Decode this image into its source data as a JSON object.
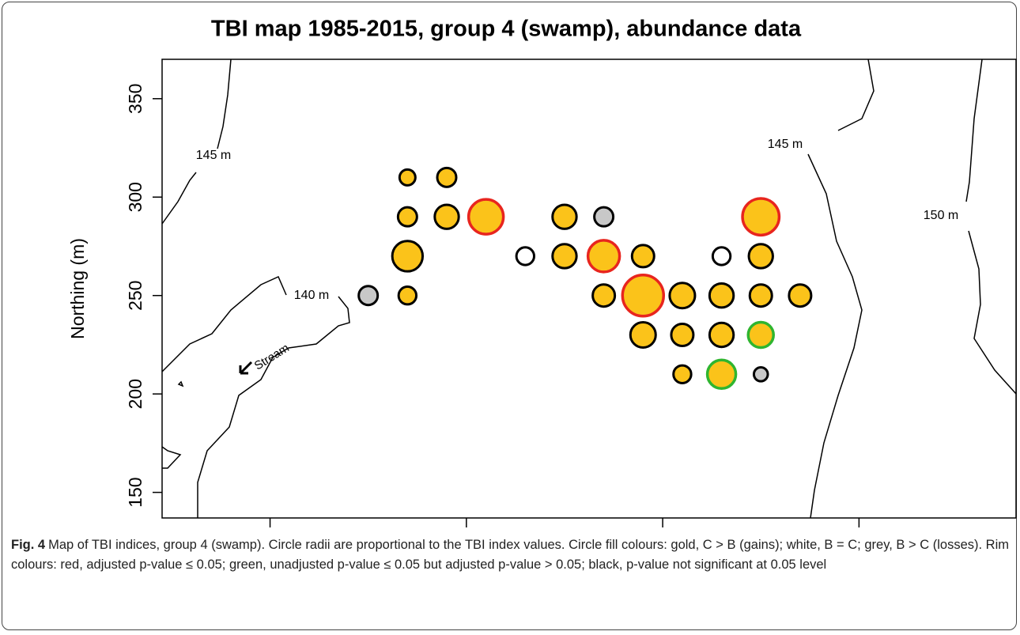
{
  "chart_data": {
    "type": "scatter",
    "title": "TBI map 1985-2015, group 4 (swamp), abundance data",
    "y_label": "Northing (m)",
    "xlim": [
      145,
      580
    ],
    "ylim": [
      137,
      370
    ],
    "xticks": [
      200,
      300,
      400,
      500
    ],
    "yticks": [
      150,
      200,
      250,
      300,
      350
    ],
    "x": [
      250,
      270,
      270,
      270,
      270,
      290,
      290,
      310,
      330,
      350,
      350,
      370,
      370,
      370,
      390,
      390,
      390,
      410,
      410,
      410,
      430,
      430,
      430,
      430,
      450,
      450,
      450,
      450,
      450,
      470
    ],
    "y": [
      250,
      310,
      290,
      270,
      250,
      310,
      290,
      290,
      270,
      290,
      270,
      290,
      270,
      250,
      270,
      250,
      230,
      250,
      230,
      210,
      270,
      250,
      230,
      210,
      290,
      270,
      250,
      230,
      210,
      250
    ],
    "sizes": [
      0.3,
      0.25,
      0.3,
      0.48,
      0.28,
      0.3,
      0.38,
      0.55,
      0.28,
      0.38,
      0.38,
      0.3,
      0.5,
      0.35,
      0.35,
      0.65,
      0.4,
      0.4,
      0.35,
      0.28,
      0.28,
      0.38,
      0.38,
      0.45,
      0.58,
      0.38,
      0.35,
      0.4,
      0.22,
      0.35
    ],
    "fills": [
      "#c8c8c8",
      "#fbc31a",
      "#fbc31a",
      "#fbc31a",
      "#fbc31a",
      "#fbc31a",
      "#fbc31a",
      "#fbc31a",
      "#ffffff",
      "#fbc31a",
      "#fbc31a",
      "#c8c8c8",
      "#fbc31a",
      "#fbc31a",
      "#fbc31a",
      "#fbc31a",
      "#fbc31a",
      "#fbc31a",
      "#fbc31a",
      "#fbc31a",
      "#ffffff",
      "#fbc31a",
      "#fbc31a",
      "#fbc31a",
      "#fbc31a",
      "#fbc31a",
      "#fbc31a",
      "#fbc31a",
      "#c8c8c8",
      "#fbc31a"
    ],
    "rims": [
      "#000000",
      "#000000",
      "#000000",
      "#000000",
      "#000000",
      "#000000",
      "#000000",
      "#e8251e",
      "#000000",
      "#000000",
      "#000000",
      "#000000",
      "#e8251e",
      "#000000",
      "#000000",
      "#e8251e",
      "#000000",
      "#000000",
      "#000000",
      "#000000",
      "#000000",
      "#000000",
      "#000000",
      "#2fb52f",
      "#e8251e",
      "#000000",
      "#000000",
      "#2fb52f",
      "#000000",
      "#000000"
    ],
    "annotations": [
      "145 m",
      "140 m",
      "Stream",
      "145 m",
      "150 m"
    ],
    "caption_label": "Fig. 4",
    "caption": "Map of TBI indices, group 4 (swamp). Circle radii are proportional to the TBI index values. Circle fill colours: gold, C > B (gains); white, B = C; grey, B > C (losses). Rim colours: red, adjusted p-value ≤ 0.05; green, unadjusted p-value ≤ 0.05 but adjusted p-value > 0.05; black, p-value not significant at 0.05 level"
  }
}
